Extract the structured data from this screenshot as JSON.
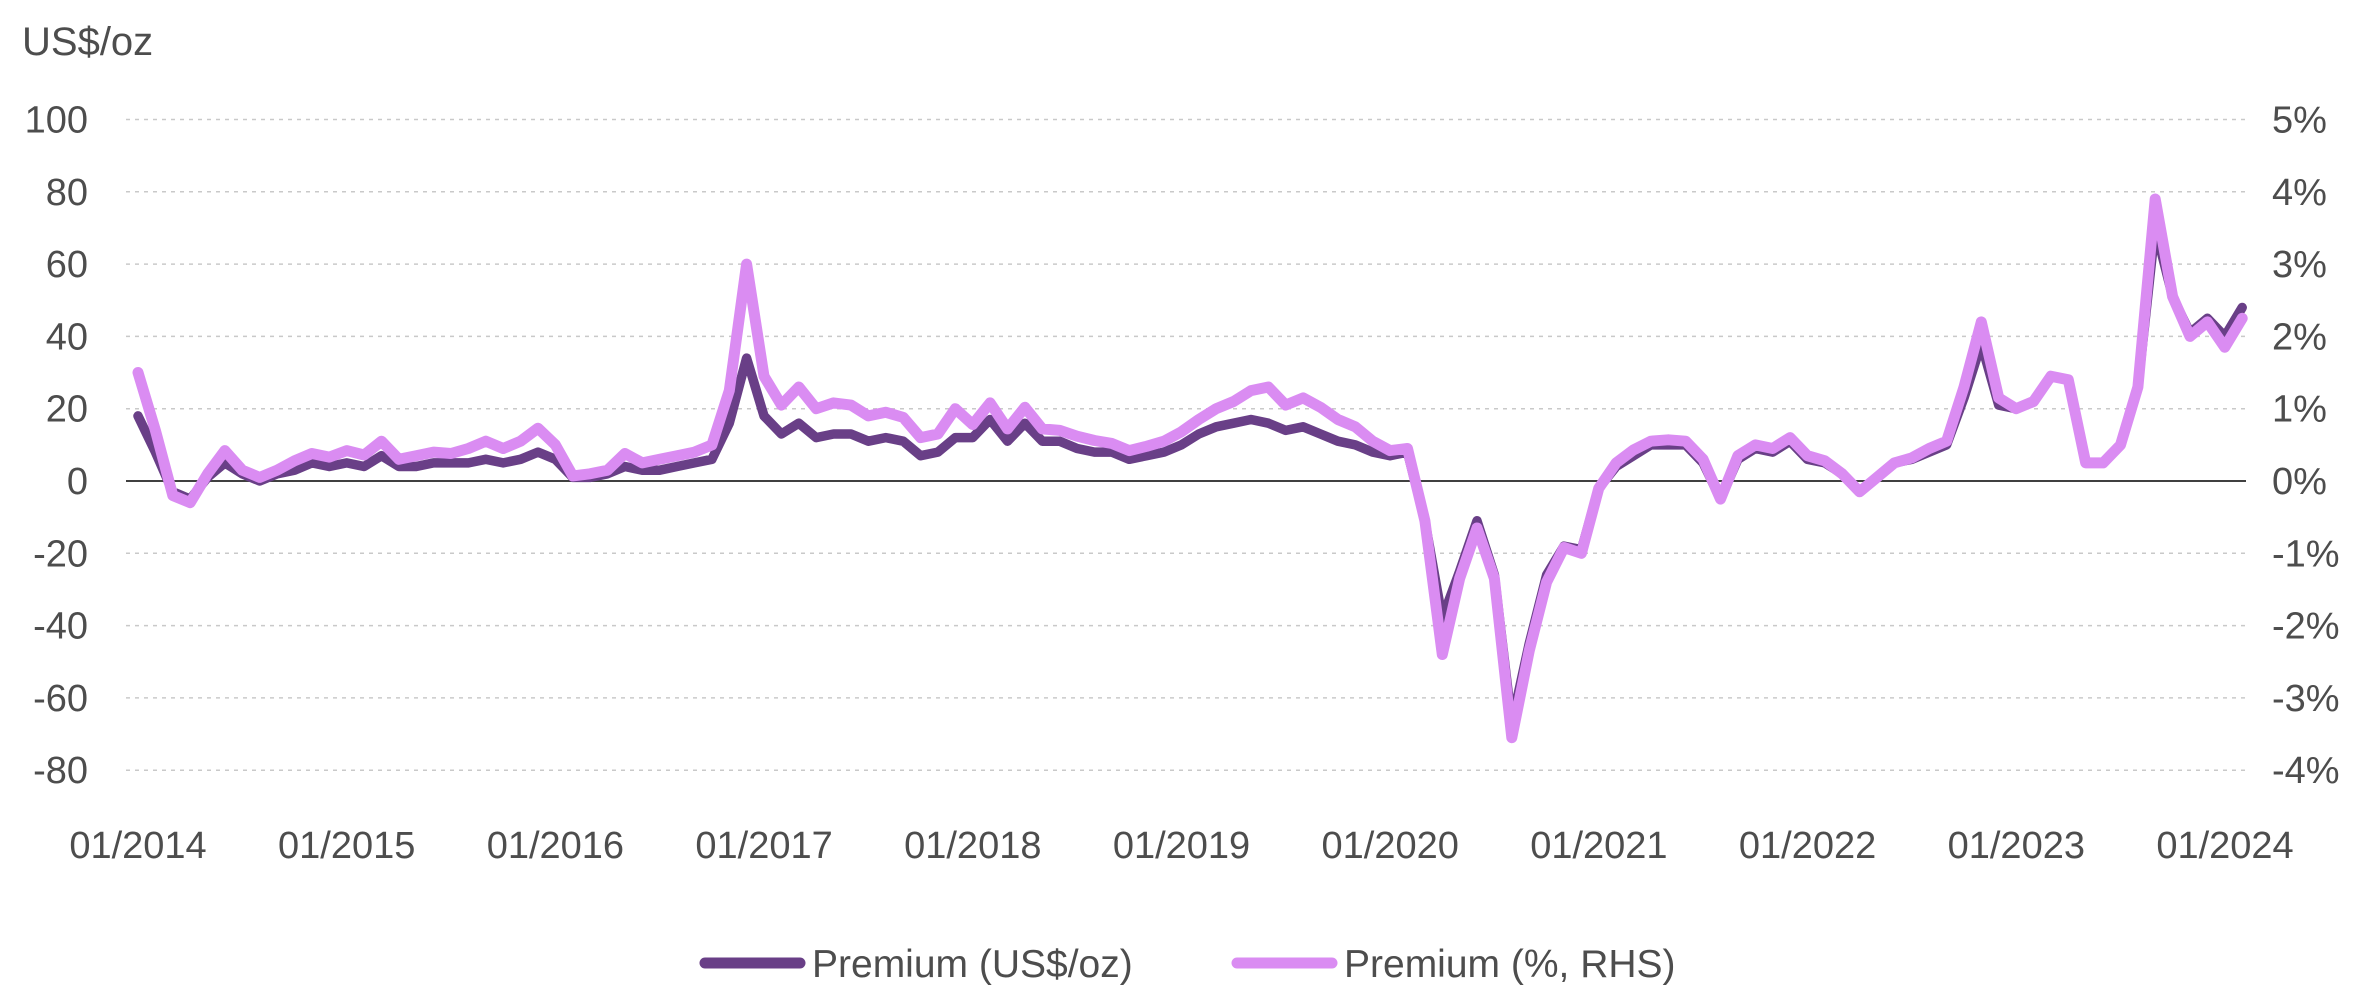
{
  "chart_data": {
    "type": "line",
    "title": "",
    "frequency": "monthly",
    "start_month": "01/2014",
    "end_month": "02/2024",
    "left_axis": {
      "title": "US$/oz",
      "labels": [
        "100",
        "80",
        "60",
        "40",
        "20",
        "0",
        "-20",
        "-40",
        "-60",
        "-80"
      ],
      "values": [
        100,
        80,
        60,
        40,
        20,
        0,
        -20,
        -40,
        -60,
        -80
      ],
      "ylim": [
        -80,
        100
      ]
    },
    "right_axis": {
      "labels": [
        "5%",
        "4%",
        "3%",
        "2%",
        "1%",
        "0%",
        "-1%",
        "-2%",
        "-3%",
        "-4%"
      ],
      "values_pct": [
        5,
        4,
        3,
        2,
        1,
        0,
        -1,
        -2,
        -3,
        -4
      ],
      "ylim_pct": [
        -4,
        5
      ]
    },
    "x_tick_labels": [
      "01/2014",
      "01/2015",
      "01/2016",
      "01/2017",
      "01/2018",
      "01/2019",
      "01/2020",
      "01/2021",
      "01/2022",
      "01/2023",
      "01/2024"
    ],
    "grid": "horizontal-dotted",
    "legend_position": "bottom-center",
    "series": [
      {
        "name": "Premium (US$/oz)",
        "axis": "left",
        "unit": "US$/oz",
        "color": "#693F87",
        "values": [
          18,
          8,
          -3,
          -5,
          1,
          5,
          2,
          0,
          2,
          3,
          5,
          4,
          5,
          4,
          7,
          4,
          4,
          5,
          5,
          5,
          6,
          5,
          6,
          8,
          6,
          1,
          1,
          2,
          4,
          3,
          3,
          4,
          5,
          6,
          16,
          34,
          18,
          13,
          16,
          12,
          13,
          13,
          11,
          12,
          11,
          7,
          8,
          12,
          12,
          17,
          11,
          16,
          11,
          11,
          9,
          8,
          8,
          6,
          7,
          8,
          10,
          13,
          15,
          16,
          17,
          16,
          14,
          15,
          13,
          11,
          10,
          8,
          7,
          8,
          -11,
          -38,
          -25,
          -11,
          -26,
          -67,
          -45,
          -26,
          -18,
          -19,
          -2,
          4,
          7,
          10,
          10,
          10,
          5,
          -5,
          6,
          9,
          8,
          11,
          6,
          5,
          2,
          -3,
          1,
          5,
          6,
          8,
          10,
          23,
          38,
          21,
          20,
          22,
          29,
          28,
          5,
          5,
          10,
          26,
          70,
          51,
          41,
          45,
          40,
          48
        ]
      },
      {
        "name": "Premium (%, RHS)",
        "axis": "right",
        "unit": "%",
        "color": "#DA8CF2",
        "values": [
          1.5,
          0.7,
          -0.2,
          -0.3,
          0.1,
          0.42,
          0.15,
          0.05,
          0.15,
          0.28,
          0.38,
          0.33,
          0.42,
          0.36,
          0.55,
          0.3,
          0.35,
          0.4,
          0.38,
          0.45,
          0.55,
          0.45,
          0.55,
          0.73,
          0.5,
          0.07,
          0.1,
          0.15,
          0.38,
          0.25,
          0.3,
          0.35,
          0.4,
          0.5,
          1.25,
          3.0,
          1.45,
          1.05,
          1.3,
          1.0,
          1.08,
          1.05,
          0.9,
          0.95,
          0.88,
          0.6,
          0.65,
          1.0,
          0.78,
          1.08,
          0.72,
          1.02,
          0.72,
          0.7,
          0.62,
          0.56,
          0.52,
          0.42,
          0.48,
          0.55,
          0.68,
          0.85,
          1.0,
          1.1,
          1.25,
          1.3,
          1.05,
          1.15,
          1.02,
          0.85,
          0.75,
          0.55,
          0.42,
          0.45,
          -0.55,
          -2.4,
          -1.35,
          -0.65,
          -1.35,
          -3.55,
          -2.35,
          -1.4,
          -0.92,
          -1.0,
          -0.1,
          0.25,
          0.43,
          0.55,
          0.57,
          0.55,
          0.3,
          -0.25,
          0.35,
          0.5,
          0.45,
          0.6,
          0.35,
          0.28,
          0.1,
          -0.15,
          0.05,
          0.25,
          0.32,
          0.45,
          0.55,
          1.3,
          2.2,
          1.15,
          1.0,
          1.1,
          1.45,
          1.4,
          0.25,
          0.25,
          0.5,
          1.3,
          3.9,
          2.55,
          2.0,
          2.2,
          1.85,
          2.25
        ]
      }
    ]
  }
}
